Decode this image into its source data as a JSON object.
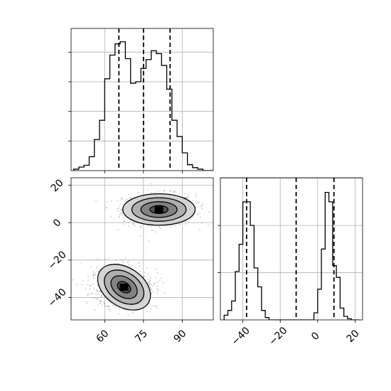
{
  "chart_data": [
    {
      "type": "histogram",
      "panel": "top-left",
      "variable_index": 0,
      "x_range": [
        47,
        102
      ],
      "y_range": [
        0,
        0.048
      ],
      "grid": true,
      "bin_edges": [
        48,
        50,
        52,
        54,
        56,
        58,
        60,
        62,
        64,
        66,
        68,
        70,
        72,
        74,
        76,
        78,
        80,
        82,
        84,
        86,
        88,
        90,
        92,
        94,
        96,
        98,
        100,
        102
      ],
      "counts": [
        0.0005,
        0.0012,
        0.0018,
        0.0047,
        0.0105,
        0.017,
        0.031,
        0.039,
        0.0428,
        0.0435,
        0.0378,
        0.0295,
        0.03,
        0.0345,
        0.0375,
        0.0405,
        0.0395,
        0.0355,
        0.0275,
        0.017,
        0.0115,
        0.006,
        0.002,
        0.001,
        0.0005,
        0,
        0
      ],
      "dashed_quantiles": [
        65.5,
        75.0,
        85.3
      ],
      "y_ticks": [
        0.01,
        0.02,
        0.03,
        0.04
      ],
      "x_ticks": [
        60,
        75,
        90
      ],
      "x_tick_labels": [],
      "y_tick_labels": []
    },
    {
      "type": "scatter",
      "subtype": "2d-density-contour",
      "panel": "bottom-left",
      "x_range": [
        47,
        102
      ],
      "y_range": [
        -52,
        24
      ],
      "grid": true,
      "x_ticks": [
        60,
        75,
        90
      ],
      "y_ticks": [
        -40,
        -20,
        0,
        20
      ],
      "x_tick_labels": [
        "60",
        "75",
        "90"
      ],
      "y_tick_labels": [
        "−40",
        "−20",
        "0",
        "20"
      ],
      "clusters": [
        {
          "center": [
            81.0,
            7.0
          ],
          "spread": [
            7.0,
            4.2
          ],
          "rotation_deg": 0
        },
        {
          "center": [
            67.5,
            -34.5
          ],
          "spread": [
            5.6,
            5.2
          ],
          "rotation_deg": -34
        }
      ],
      "contour_levels_sigma": [
        0.5,
        1.0,
        1.5,
        2.0
      ]
    },
    {
      "type": "histogram",
      "panel": "bottom-right",
      "variable_index": 1,
      "x_range": [
        -52,
        24
      ],
      "y_range": [
        0,
        0.0602
      ],
      "grid": true,
      "bin_edges": [
        -50,
        -48,
        -46,
        -44,
        -42,
        -40,
        -38,
        -36,
        -34,
        -32,
        -30,
        -28,
        -26,
        -24,
        -22,
        -20,
        -18,
        -16,
        -14,
        -12,
        -10,
        -8,
        -6,
        -4,
        -2,
        0,
        2,
        4,
        6,
        8,
        10,
        12,
        14,
        16,
        18,
        20,
        22
      ],
      "counts": [
        0.002,
        0.004,
        0.008,
        0.0205,
        0.032,
        0.05,
        0.05,
        0.04,
        0.022,
        0.014,
        0.004,
        0.001,
        0,
        0,
        0,
        0,
        0,
        0,
        0,
        0,
        0,
        0,
        0,
        0,
        0.003,
        0.013,
        0.03,
        0.054,
        0.05,
        0.023,
        0.018,
        0.005,
        0.0015,
        0.0005,
        0,
        0
      ],
      "dashed_quantiles": [
        -38.0,
        -11.5,
        8.7
      ],
      "y_ticks": [
        0.02,
        0.04
      ],
      "x_ticks": [
        -40,
        -20,
        0,
        20
      ],
      "x_tick_labels": [
        "−40",
        "−20",
        "0",
        "20"
      ],
      "y_tick_labels": []
    }
  ],
  "colors": {
    "axis": "#000000",
    "grid": "#b0b0b0",
    "histogram": "#000000",
    "points": "#000000"
  }
}
